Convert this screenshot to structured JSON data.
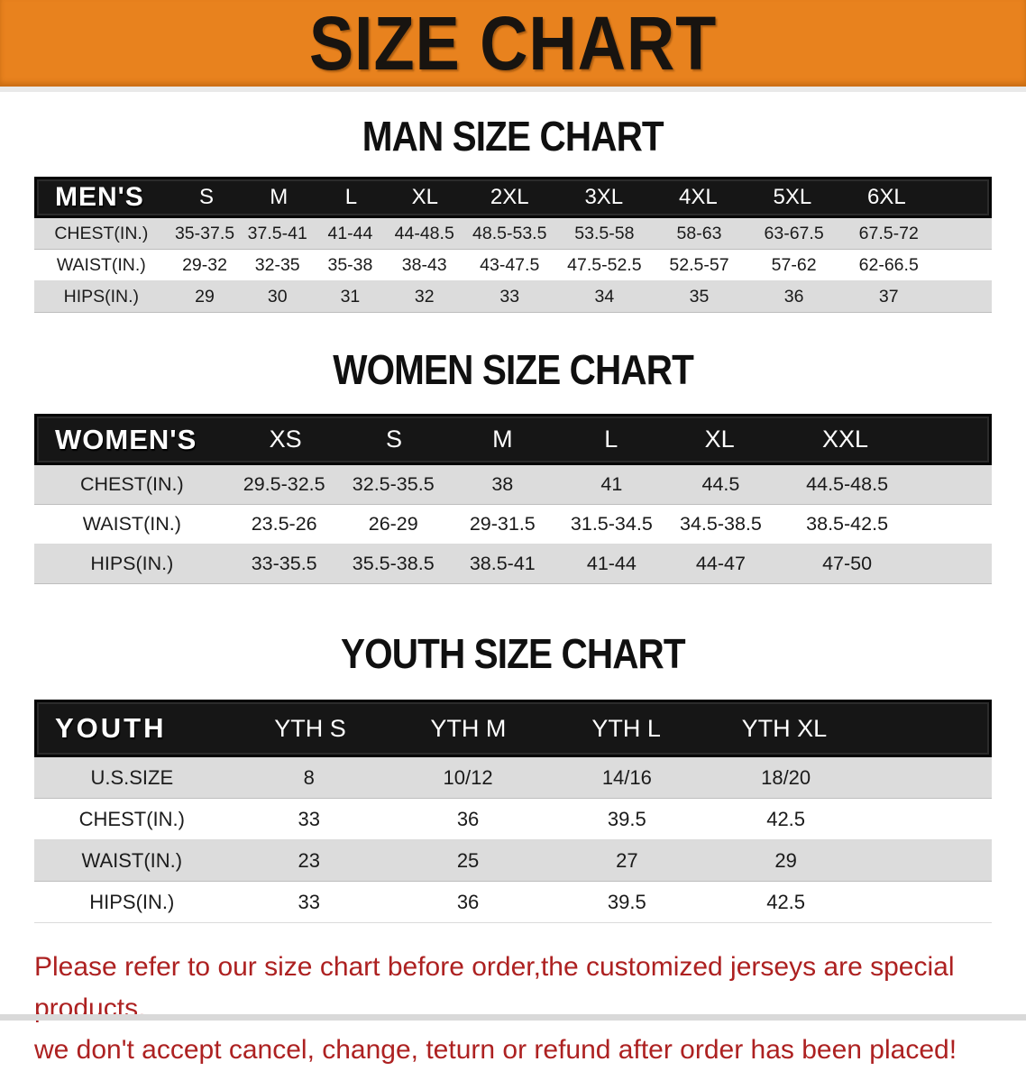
{
  "banner": {
    "title": "SIZE CHART"
  },
  "colors": {
    "banner_bg": "#E8821E",
    "table_header_bg": "#161616",
    "row_gray": "#DCDCDC",
    "notice_red": "#AD2121"
  },
  "sections": [
    {
      "heading": "MAN SIZE CHART",
      "table": {
        "header_label": "MEN'S",
        "columns": [
          "S",
          "M",
          "L",
          "XL",
          "2XL",
          "3XL",
          "4XL",
          "5XL",
          "6XL"
        ],
        "rows": [
          {
            "label": "CHEST(IN.)",
            "values": [
              "35-37.5",
              "37.5-41",
              "41-44",
              "44-48.5",
              "48.5-53.5",
              "53.5-58",
              "58-63",
              "63-67.5",
              "67.5-72"
            ]
          },
          {
            "label": "WAIST(IN.)",
            "values": [
              "29-32",
              "32-35",
              "35-38",
              "38-43",
              "43-47.5",
              "47.5-52.5",
              "52.5-57",
              "57-62",
              "62-66.5"
            ]
          },
          {
            "label": "HIPS(IN.)",
            "values": [
              "29",
              "30",
              "31",
              "32",
              "33",
              "34",
              "35",
              "36",
              "37"
            ]
          }
        ]
      }
    },
    {
      "heading": "WOMEN SIZE CHART",
      "table": {
        "header_label": "WOMEN'S",
        "columns": [
          "XS",
          "S",
          "M",
          "L",
          "XL",
          "XXL"
        ],
        "rows": [
          {
            "label": "CHEST(IN.)",
            "values": [
              "29.5-32.5",
              "32.5-35.5",
              "38",
              "41",
              "44.5",
              "44.5-48.5"
            ]
          },
          {
            "label": "WAIST(IN.)",
            "values": [
              "23.5-26",
              "26-29",
              "29-31.5",
              "31.5-34.5",
              "34.5-38.5",
              "38.5-42.5"
            ]
          },
          {
            "label": "HIPS(IN.)",
            "values": [
              "33-35.5",
              "35.5-38.5",
              "38.5-41",
              "41-44",
              "44-47",
              "47-50"
            ]
          }
        ]
      }
    },
    {
      "heading": "YOUTH SIZE CHART",
      "table": {
        "header_label": "YOUTH",
        "columns": [
          "YTH S",
          "YTH M",
          "YTH L",
          "YTH XL"
        ],
        "rows": [
          {
            "label": "U.S.SIZE",
            "values": [
              "8",
              "10/12",
              "14/16",
              "18/20"
            ]
          },
          {
            "label": "CHEST(IN.)",
            "values": [
              "33",
              "36",
              "39.5",
              "42.5"
            ]
          },
          {
            "label": "WAIST(IN.)",
            "values": [
              "23",
              "25",
              "27",
              "29"
            ]
          },
          {
            "label": "HIPS(IN.)",
            "values": [
              "33",
              "36",
              "39.5",
              "42.5"
            ]
          }
        ]
      }
    }
  ],
  "footer": {
    "line1": "Please refer to our size chart before order,the customized jerseys are special products,",
    "line2": "we don't accept cancel, change, teturn or refund after order has been placed!"
  }
}
